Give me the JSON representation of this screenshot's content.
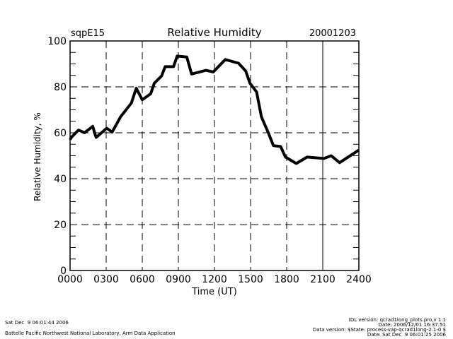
{
  "header": {
    "site": "sqpE15",
    "title": "Relative Humidity",
    "date": "20001203"
  },
  "footer": {
    "left_line1": "Sat Dec  9 06:01:44 2006",
    "left_line2": "Battelle Pacific Northwest National Laboratory, Arm Data Application",
    "right_line1": "IDL version: qcrad1long_plots.pro,v 1.1",
    "right_line2": "Date: 2006/12/01 16:37:51",
    "right_line3": "Data version: $State: process-vap-qcrad1long-2.1-0 $",
    "right_line4": "Date: Sat Dec  9 06:01:25 2006"
  },
  "chart_data": {
    "type": "line",
    "title": "Relative Humidity",
    "xlabel": "Time (UT)",
    "ylabel": "Relative Humidity, %",
    "xlim": [
      0,
      24
    ],
    "ylim": [
      0,
      100
    ],
    "x_tick_labels": [
      "0000",
      "0300",
      "0600",
      "0900",
      "1200",
      "1500",
      "1800",
      "2100",
      "2400"
    ],
    "y_tick_labels": [
      "0",
      "20",
      "40",
      "60",
      "80",
      "100"
    ],
    "grid": true,
    "color": "#000000",
    "series": [
      {
        "x": [
          0.0,
          0.12,
          0.7,
          1.2,
          1.88,
          2.1,
          2.17,
          3.05,
          3.5,
          4.2,
          5.1,
          5.5,
          6.0,
          6.7,
          7.0,
          7.6,
          7.9,
          8.6,
          8.9,
          9.7,
          10.1,
          11.3,
          11.9,
          12.9,
          14.0,
          14.6,
          14.95,
          15.5,
          15.9,
          16.5,
          16.9,
          17.5,
          17.9,
          18.8,
          19.7,
          21.1,
          21.7,
          22.4,
          24.0
        ],
        "y": [
          57,
          58.1,
          61.2,
          60,
          62.8,
          59,
          58,
          62,
          60.3,
          67,
          73,
          79.4,
          74.4,
          77,
          81.6,
          84.7,
          88.8,
          88.8,
          93.4,
          93,
          85.6,
          87.2,
          86.5,
          91.9,
          90.3,
          86.9,
          81.6,
          77.8,
          67,
          59.7,
          54.4,
          54,
          49.4,
          46.6,
          49.4,
          48.8,
          50,
          47,
          52.5
        ]
      }
    ]
  }
}
